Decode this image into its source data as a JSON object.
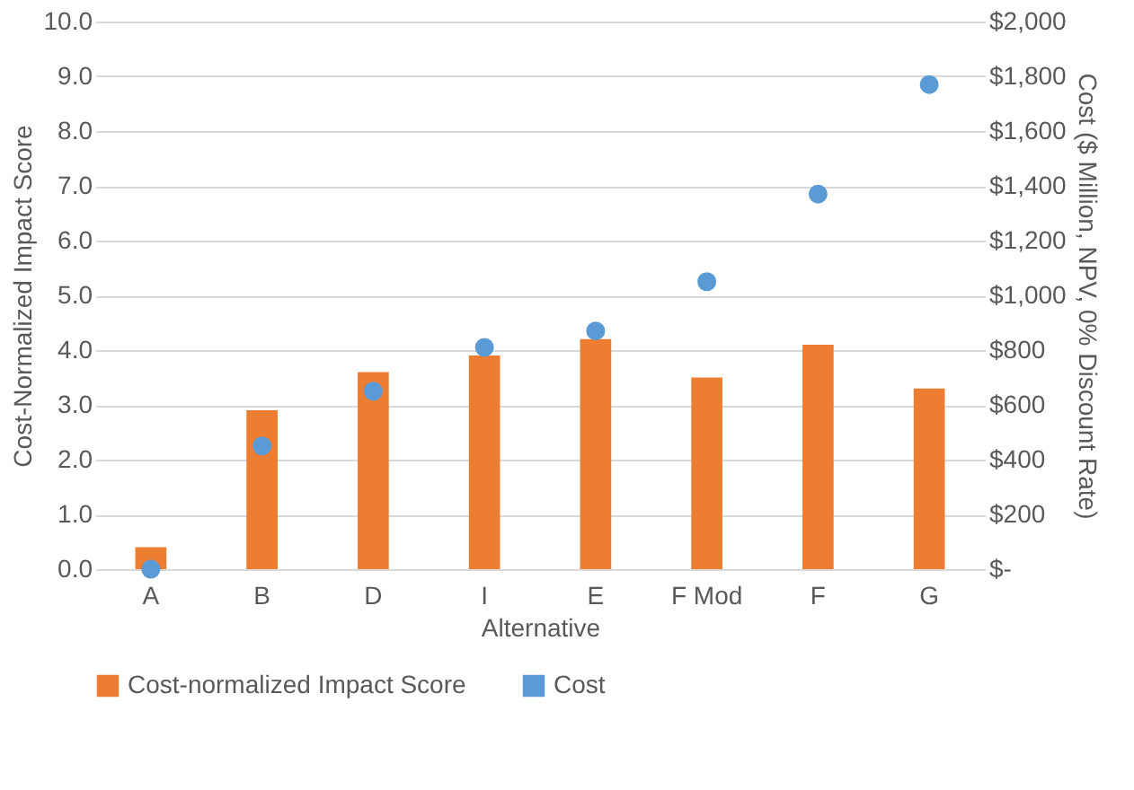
{
  "chart_data": {
    "type": "bar",
    "xlabel": "Alternative",
    "ylabel": "Cost-Normalized Impact Score",
    "y2label": "Cost ($ Million, NPV, 0% Discount Rate)",
    "categories": [
      "A",
      "B",
      "D",
      "I",
      "E",
      "F Mod",
      "F",
      "G"
    ],
    "series": [
      {
        "name": "Cost-normalized Impact Score",
        "color": "#ed7d31",
        "values": [
          0.4,
          2.9,
          3.6,
          3.9,
          4.2,
          3.5,
          4.1,
          3.3
        ]
      },
      {
        "name": "Cost",
        "color": "#5b9bd5",
        "type": "scatter",
        "axis": "y2",
        "marker": "circle",
        "values": [
          0,
          450,
          650,
          810,
          870,
          1050,
          1370,
          1770
        ]
      }
    ],
    "ylim": [
      0,
      10
    ],
    "yticks": [
      {
        "value": 0,
        "label": "0.0"
      },
      {
        "value": 1,
        "label": "1.0"
      },
      {
        "value": 2,
        "label": "2.0"
      },
      {
        "value": 3,
        "label": "3.0"
      },
      {
        "value": 4,
        "label": "4.0"
      },
      {
        "value": 5,
        "label": "5.0"
      },
      {
        "value": 6,
        "label": "6.0"
      },
      {
        "value": 7,
        "label": "7.0"
      },
      {
        "value": 8,
        "label": "8.0"
      },
      {
        "value": 9,
        "label": "9.0"
      },
      {
        "value": 10,
        "label": "10.0"
      }
    ],
    "y2lim": [
      0,
      2000
    ],
    "y2ticks": [
      {
        "value": 0,
        "label": "$-"
      },
      {
        "value": 200,
        "label": "$200"
      },
      {
        "value": 400,
        "label": "$400"
      },
      {
        "value": 600,
        "label": "$600"
      },
      {
        "value": 800,
        "label": "$800"
      },
      {
        "value": 1000,
        "label": "$1,000"
      },
      {
        "value": 1200,
        "label": "$1,200"
      },
      {
        "value": 1400,
        "label": "$1,400"
      },
      {
        "value": 1600,
        "label": "$1,600"
      },
      {
        "value": 1800,
        "label": "$1,800"
      },
      {
        "value": 2000,
        "label": "$2,000"
      }
    ],
    "grid": "y",
    "legend": "bottom"
  }
}
